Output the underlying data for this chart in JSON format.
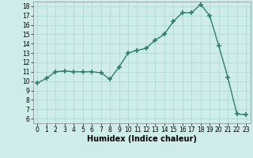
{
  "x": [
    0,
    1,
    2,
    3,
    4,
    5,
    6,
    7,
    8,
    9,
    10,
    11,
    12,
    13,
    14,
    15,
    16,
    17,
    18,
    19,
    20,
    21,
    22,
    23
  ],
  "y": [
    9.8,
    10.3,
    11.0,
    11.1,
    11.0,
    11.0,
    11.0,
    10.9,
    10.2,
    11.5,
    13.0,
    13.3,
    13.5,
    14.4,
    15.0,
    16.4,
    17.3,
    17.3,
    18.2,
    17.0,
    13.8,
    10.4,
    6.5,
    6.4
  ],
  "line_color": "#2e7d6e",
  "marker": "+",
  "marker_size": 4,
  "marker_lw": 1.2,
  "line_width": 1.0,
  "bg_color": "#ceecea",
  "grid_color": "#b0d8d4",
  "xlabel": "Humidex (Indice chaleur)",
  "xlim": [
    -0.5,
    23.5
  ],
  "ylim": [
    5.5,
    18.5
  ],
  "yticks": [
    6,
    7,
    8,
    9,
    10,
    11,
    12,
    13,
    14,
    15,
    16,
    17,
    18
  ],
  "xticks": [
    0,
    1,
    2,
    3,
    4,
    5,
    6,
    7,
    8,
    9,
    10,
    11,
    12,
    13,
    14,
    15,
    16,
    17,
    18,
    19,
    20,
    21,
    22,
    23
  ],
  "tick_fontsize": 5.5,
  "xlabel_fontsize": 7
}
